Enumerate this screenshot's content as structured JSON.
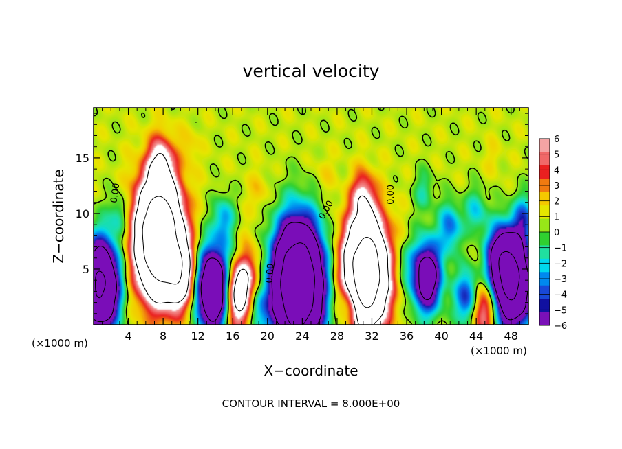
{
  "chart_data": {
    "type": "heatmap",
    "title": "vertical velocity",
    "xlabel": "X−coordinate",
    "ylabel": "Z−coordinate",
    "x_unit_left": "(×1000 m)",
    "x_unit_right": "(×1000 m)",
    "footer": "CONTOUR INTERVAL = 8.000E+00",
    "xlim": [
      0,
      50
    ],
    "ylim": [
      0,
      19.5
    ],
    "x_ticks": [
      {
        "value": 4,
        "label": "4"
      },
      {
        "value": 8,
        "label": "8"
      },
      {
        "value": 12,
        "label": "12"
      },
      {
        "value": 16,
        "label": "16"
      },
      {
        "value": 20,
        "label": "20"
      },
      {
        "value": 24,
        "label": "24"
      },
      {
        "value": 28,
        "label": "28"
      },
      {
        "value": 32,
        "label": "32"
      },
      {
        "value": 36,
        "label": "36"
      },
      {
        "value": 40,
        "label": "40"
      },
      {
        "value": 44,
        "label": "44"
      },
      {
        "value": 48,
        "label": "48"
      }
    ],
    "y_ticks": [
      {
        "value": 5,
        "label": "5"
      },
      {
        "value": 10,
        "label": "10"
      },
      {
        "value": 15,
        "label": "15"
      }
    ],
    "colorbar": {
      "min": -6,
      "max": 6,
      "labels": [
        "6",
        "5",
        "4",
        "3",
        "2",
        "1",
        "0",
        "−1",
        "−2",
        "−3",
        "−4",
        "−5",
        "−6"
      ],
      "colors": [
        "#f4a3a3",
        "#f06868",
        "#ea2020",
        "#f07a10",
        "#f5c800",
        "#e6e600",
        "#98e618",
        "#30d030",
        "#20e0a0",
        "#00d8ee",
        "#0088ee",
        "#1848d8",
        "#1010a0",
        "#7a10b8"
      ]
    },
    "contour_labels": [
      {
        "text": "0.00",
        "x": 2.8,
        "z": 11.8,
        "angle": -82
      },
      {
        "text": "0.00",
        "x": 20.6,
        "z": 4.6,
        "angle": -85
      },
      {
        "text": "0.00",
        "x": 27.0,
        "z": 10.2,
        "angle": -60
      },
      {
        "text": "0.00",
        "x": 34.5,
        "z": 11.7,
        "angle": -90
      }
    ],
    "features": [
      {
        "x": 0.8,
        "z": 3.5,
        "w": -18
      },
      {
        "x": 7.5,
        "z": 7.8,
        "w": 26
      },
      {
        "x": 7.7,
        "z": 14.5,
        "w": 6
      },
      {
        "x": 10.0,
        "z": 4.5,
        "w": 10
      },
      {
        "x": 13.8,
        "z": 3.2,
        "w": -16
      },
      {
        "x": 17.0,
        "z": 3.0,
        "w": 14
      },
      {
        "x": 18.5,
        "z": 1.6,
        "w": -7
      },
      {
        "x": 23.5,
        "z": 3.6,
        "w": -28
      },
      {
        "x": 31.3,
        "z": 4.6,
        "w": 24
      },
      {
        "x": 31.0,
        "z": 11.5,
        "w": 5
      },
      {
        "x": 29.5,
        "z": 1.8,
        "w": -5
      },
      {
        "x": 35.5,
        "z": 5.5,
        "w": -2
      },
      {
        "x": 38.3,
        "z": 4.3,
        "w": -12
      },
      {
        "x": 41.0,
        "z": 8.8,
        "w": -5
      },
      {
        "x": 44.7,
        "z": 1.4,
        "w": 7
      },
      {
        "x": 43.0,
        "z": 2.4,
        "w": -7
      },
      {
        "x": 48.2,
        "z": 3.8,
        "w": -18
      },
      {
        "x": 46.8,
        "z": 6.0,
        "w": -9
      },
      {
        "x": 49.5,
        "z": 9.5,
        "w": -4.5
      },
      {
        "x": 44.0,
        "z": 10.2,
        "w": -3.5
      },
      {
        "x": 38.0,
        "z": 12.0,
        "w": -2.5
      },
      {
        "x": 3.0,
        "z": 9.8,
        "w": -3
      },
      {
        "x": 15.0,
        "z": 9.5,
        "w": -4
      },
      {
        "x": 16.5,
        "z": 6.0,
        "w": -3
      },
      {
        "x": 11.0,
        "z": 16.0,
        "w": 1.2
      },
      {
        "x": 19.0,
        "z": 12.0,
        "w": 1.6
      },
      {
        "x": 26.5,
        "z": 13.5,
        "w": 1.2
      },
      {
        "x": 46.0,
        "z": 15.0,
        "w": 0.8
      }
    ]
  }
}
